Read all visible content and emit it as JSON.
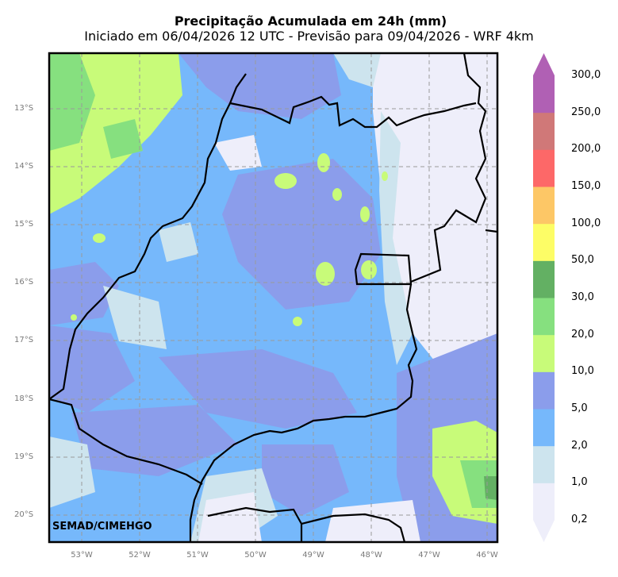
{
  "title": "Precipitação Acumulada em 24h (mm)",
  "subtitle": "Iniciado em 06/04/2026 12 UTC - Previsão para 09/04/2026 - WRF 4km",
  "credit": "SEMAD/CIMEHGO",
  "lat_ticks": [
    "13°S",
    "14°S",
    "15°S",
    "16°S",
    "17°S",
    "18°S",
    "19°S",
    "20°S"
  ],
  "lon_ticks": [
    "53°W",
    "52°W",
    "51°W",
    "50°W",
    "49°W",
    "48°W",
    "47°W",
    "46°W"
  ],
  "colorbar": {
    "labels": [
      "0,2",
      "1,0",
      "2,0",
      "5,0",
      "10,0",
      "20,0",
      "30,0",
      "50,0",
      "100,0",
      "150,0",
      "200,0",
      "250,0",
      "300,0"
    ],
    "colors": [
      "#eeeefa",
      "#cde4ee",
      "#76b8fb",
      "#8b9deb",
      "#c8fb79",
      "#86e07f",
      "#63b063",
      "#fdfd66",
      "#fdc766",
      "#fd6868",
      "#d07878",
      "#b060b4"
    ]
  }
}
